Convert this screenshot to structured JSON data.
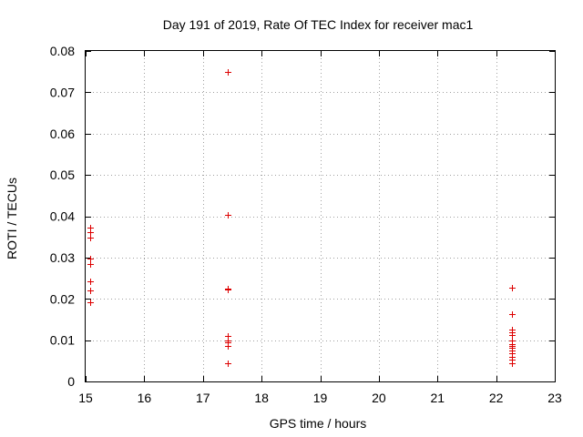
{
  "chart_data": {
    "type": "scatter",
    "title": "Day 191 of 2019, Rate Of TEC Index for receiver mac1",
    "xlabel": "GPS time / hours",
    "ylabel": "ROTI / TECUs",
    "xlim": [
      15,
      23
    ],
    "ylim": [
      0,
      0.08
    ],
    "grid": true,
    "xticks": [
      15,
      16,
      17,
      18,
      19,
      20,
      21,
      22,
      23
    ],
    "xtick_labels": [
      "15",
      "16",
      "17",
      "18",
      "19",
      "20",
      "21",
      "22",
      "23"
    ],
    "yticks": [
      0,
      0.01,
      0.02,
      0.03,
      0.04,
      0.05,
      0.06,
      0.07,
      0.08
    ],
    "ytick_labels": [
      "0",
      "0.01",
      "0.02",
      "0.03",
      "0.04",
      "0.05",
      "0.06",
      "0.07",
      "0.08"
    ],
    "marker_color": "#dd0000",
    "series": [
      {
        "name": "mac1",
        "x": [
          15.08,
          15.08,
          15.08,
          15.08,
          15.08,
          15.08,
          15.08,
          15.08,
          17.43,
          17.43,
          17.43,
          17.43,
          17.43,
          17.43,
          17.43,
          17.43,
          17.43,
          22.27,
          22.27,
          22.27,
          22.27,
          22.27,
          22.27,
          22.27,
          22.27,
          22.27,
          22.27,
          22.27,
          22.27,
          22.27,
          22.27,
          22.27
        ],
        "y": [
          0.0372,
          0.0362,
          0.0348,
          0.0297,
          0.0285,
          0.0242,
          0.022,
          0.0192,
          0.075,
          0.0403,
          0.0225,
          0.0222,
          0.011,
          0.01,
          0.0095,
          0.0085,
          0.0045,
          0.0228,
          0.0227,
          0.0162,
          0.0125,
          0.0118,
          0.0112,
          0.01,
          0.009,
          0.0085,
          0.0082,
          0.0075,
          0.0068,
          0.006,
          0.0053,
          0.0045
        ]
      }
    ]
  }
}
